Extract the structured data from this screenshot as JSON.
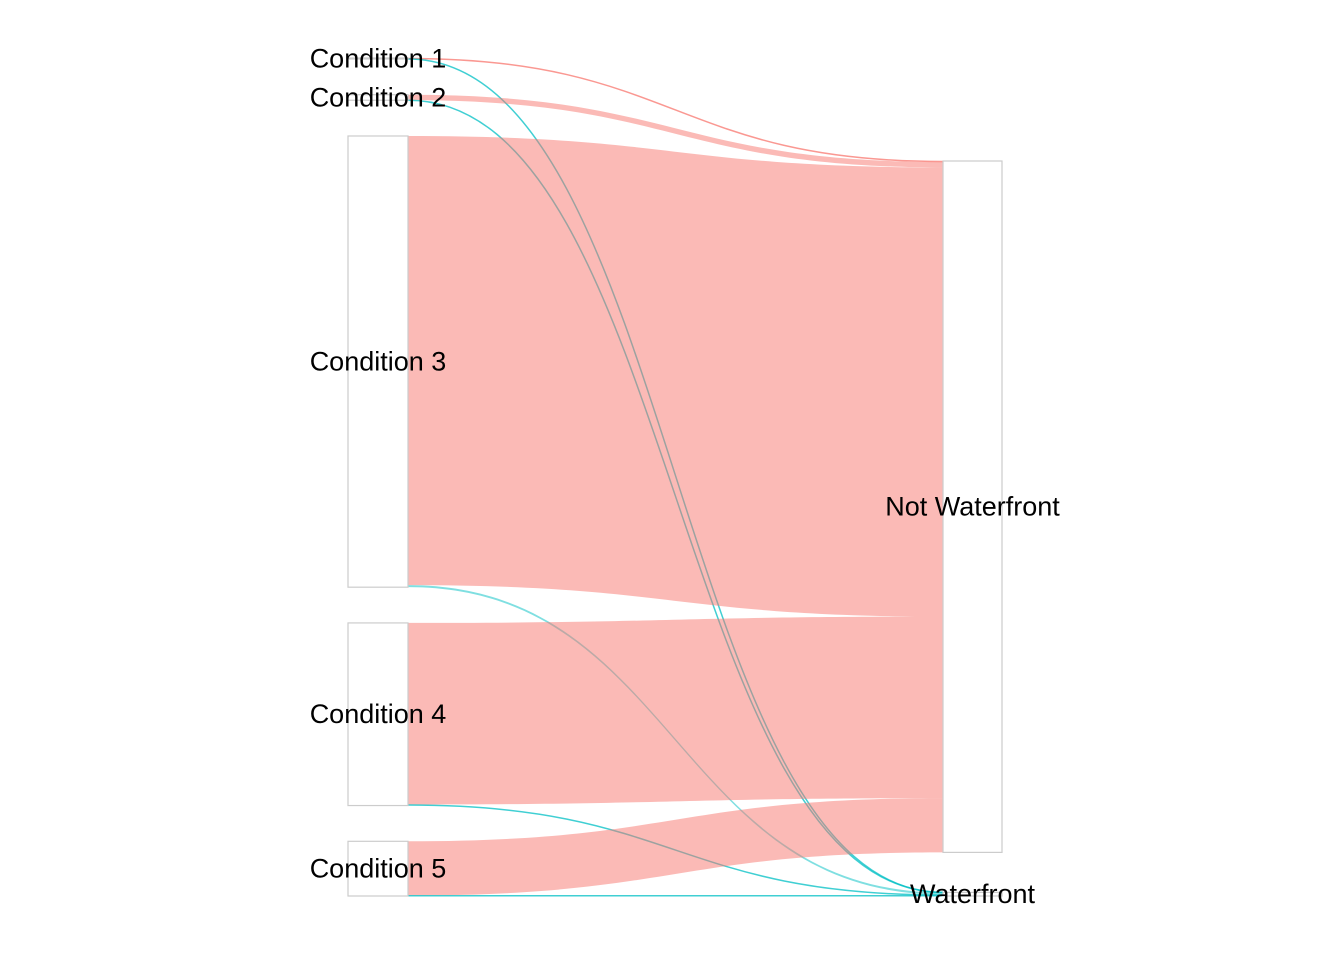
{
  "chart_data": {
    "type": "sankey",
    "title": "",
    "axes": false,
    "legend": "none",
    "flow_colors": {
      "Not Waterfront": "#f8766d",
      "Waterfront": "#00bfc4"
    },
    "flow_opacity": 0.5,
    "nodes": {
      "left": [
        "Condition 1",
        "Condition 2",
        "Condition 3",
        "Condition 4",
        "Condition 5"
      ],
      "right": [
        "Not Waterfront",
        "Waterfront"
      ]
    },
    "links": [
      {
        "source": "Condition 1",
        "target": "Not Waterfront",
        "value": 30
      },
      {
        "source": "Condition 1",
        "target": "Waterfront",
        "value": 0
      },
      {
        "source": "Condition 2",
        "target": "Not Waterfront",
        "value": 170
      },
      {
        "source": "Condition 2",
        "target": "Waterfront",
        "value": 2
      },
      {
        "source": "Condition 3",
        "target": "Not Waterfront",
        "value": 13967
      },
      {
        "source": "Condition 3",
        "target": "Waterfront",
        "value": 64
      },
      {
        "source": "Condition 4",
        "target": "Not Waterfront",
        "value": 5647
      },
      {
        "source": "Condition 4",
        "target": "Waterfront",
        "value": 32
      },
      {
        "source": "Condition 5",
        "target": "Not Waterfront",
        "value": 1687
      },
      {
        "source": "Condition 5",
        "target": "Waterfront",
        "value": 14
      }
    ]
  }
}
